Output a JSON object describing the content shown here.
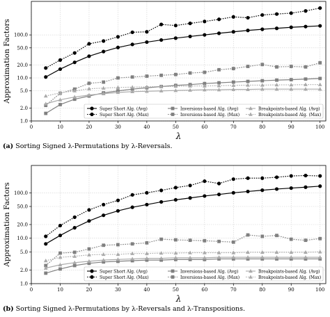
{
  "chart_data": [
    {
      "type": "line",
      "id": "a",
      "caption_label": "(a)",
      "caption_text": "Sorting Signed λ-Permutations by λ-Reversals.",
      "ylabel": "Approximation Factors",
      "xlabel": "λ",
      "yscale": "log",
      "xlim": [
        0,
        102
      ],
      "ylim": [
        1,
        600
      ],
      "xticks": [
        0,
        10,
        20,
        30,
        40,
        50,
        60,
        70,
        80,
        90,
        100
      ],
      "yticks": [
        1.0,
        2.0,
        5.0,
        10.0,
        20.0,
        50.0,
        100.0
      ],
      "ytick_labels": [
        "1.0",
        "2.0",
        "5.0",
        "10.0",
        "20.0",
        "50.0",
        "100.0"
      ],
      "grid": true,
      "legend": "lower-right",
      "x": [
        5,
        10,
        15,
        20,
        25,
        30,
        35,
        40,
        45,
        50,
        55,
        60,
        65,
        70,
        75,
        80,
        85,
        90,
        95,
        100
      ],
      "series": [
        {
          "name": "Super Short Alg. (Avg)",
          "color": "#000000",
          "dash": "solid",
          "marker": "circle",
          "values": [
            10.5,
            16,
            23,
            32,
            41,
            51,
            60,
            68,
            76,
            84,
            92,
            100,
            109,
            118,
            127,
            135,
            142,
            150,
            156,
            162
          ]
        },
        {
          "name": "Super Short Alg. (Max)",
          "color": "#000000",
          "dash": "dotted",
          "marker": "circle",
          "values": [
            17,
            26,
            38,
            62,
            72,
            90,
            115,
            118,
            175,
            165,
            185,
            205,
            230,
            262,
            250,
            290,
            305,
            320,
            360,
            420
          ]
        },
        {
          "name": "Inversions-based Alg. (Avg)",
          "color": "#808080",
          "dash": "solid",
          "marker": "square",
          "values": [
            1.5,
            2.4,
            3.2,
            3.8,
            4.5,
            5.0,
            5.5,
            5.9,
            6.3,
            6.7,
            7.0,
            7.4,
            7.7,
            8.0,
            8.3,
            8.6,
            8.9,
            9.1,
            9.4,
            9.7
          ]
        },
        {
          "name": "Inversions-based Alg. (Max)",
          "color": "#808080",
          "dash": "dotted",
          "marker": "square",
          "values": [
            2.3,
            4.4,
            5.5,
            7.5,
            8.0,
            10.0,
            10.5,
            11.0,
            11.5,
            12.0,
            13.0,
            13.5,
            15.5,
            16.5,
            18.5,
            20.5,
            18.0,
            18.5,
            18.0,
            22.5
          ]
        },
        {
          "name": "Breakpoints-based Alg. (Avg)",
          "color": "#aaaaaa",
          "dash": "solid",
          "marker": "triangle",
          "values": [
            2.5,
            3.1,
            3.6,
            4.0,
            4.3,
            4.6,
            4.8,
            4.9,
            5.0,
            5.1,
            5.2,
            5.3,
            5.3,
            5.4,
            5.4,
            5.5,
            5.5,
            5.5,
            5.5,
            5.5
          ]
        },
        {
          "name": "Breakpoints-based Alg. (Max)",
          "color": "#aaaaaa",
          "dash": "dotted",
          "marker": "triangle",
          "values": [
            3.8,
            4.5,
            5.0,
            5.6,
            5.8,
            6.0,
            6.1,
            6.2,
            6.3,
            6.4,
            6.5,
            6.5,
            6.6,
            6.7,
            6.8,
            6.8,
            6.9,
            6.9,
            7.0,
            7.0
          ]
        }
      ]
    },
    {
      "type": "line",
      "id": "b",
      "caption_label": "(b)",
      "caption_text": "Sorting Signed λ-Permutations by λ-Reversals and λ-Transpositions.",
      "ylabel": "Approximation Factors",
      "xlabel": "λ",
      "yscale": "log",
      "xlim": [
        0,
        102
      ],
      "ylim": [
        1,
        400
      ],
      "xticks": [
        0,
        10,
        20,
        30,
        40,
        50,
        60,
        70,
        80,
        90,
        100
      ],
      "yticks": [
        1.0,
        2.0,
        5.0,
        10.0,
        20.0,
        50.0,
        100.0
      ],
      "ytick_labels": [
        "1.0",
        "2.0",
        "5.0",
        "10.0",
        "20.0",
        "50.0",
        "100.0"
      ],
      "grid": true,
      "legend": "lower-right",
      "x": [
        5,
        10,
        15,
        20,
        25,
        30,
        35,
        40,
        45,
        50,
        55,
        60,
        65,
        70,
        75,
        80,
        85,
        90,
        95,
        100
      ],
      "series": [
        {
          "name": "Super Short Alg. (Avg)",
          "color": "#000000",
          "dash": "solid",
          "marker": "circle",
          "values": [
            7.5,
            11.5,
            17,
            24,
            32,
            40,
            48,
            55,
            63,
            70,
            77,
            85,
            92,
            100,
            107,
            114,
            121,
            127,
            133,
            140
          ]
        },
        {
          "name": "Super Short Alg. (Max)",
          "color": "#000000",
          "dash": "dotted",
          "marker": "circle",
          "values": [
            11,
            19,
            29,
            42,
            55,
            68,
            90,
            100,
            113,
            130,
            145,
            180,
            160,
            200,
            210,
            210,
            220,
            235,
            240,
            235
          ]
        },
        {
          "name": "Inversions-based Alg. (Avg)",
          "color": "#808080",
          "dash": "solid",
          "marker": "square",
          "values": [
            1.7,
            2.1,
            2.5,
            2.8,
            3.0,
            3.1,
            3.2,
            3.3,
            3.3,
            3.4,
            3.4,
            3.4,
            3.5,
            3.5,
            3.5,
            3.5,
            3.5,
            3.5,
            3.5,
            3.5
          ]
        },
        {
          "name": "Inversions-based Alg. (Max)",
          "color": "#808080",
          "dash": "dotted",
          "marker": "square",
          "values": [
            2.5,
            4.7,
            4.9,
            5.8,
            7.0,
            7.2,
            7.5,
            7.9,
            9.5,
            9.2,
            9.0,
            8.8,
            8.5,
            8.2,
            11.8,
            11.0,
            11.5,
            9.5,
            9.0,
            9.8
          ]
        },
        {
          "name": "Breakpoints-based Alg. (Avg)",
          "color": "#aaaaaa",
          "dash": "solid",
          "marker": "triangle",
          "values": [
            2.2,
            2.6,
            2.9,
            3.1,
            3.3,
            3.4,
            3.5,
            3.6,
            3.6,
            3.7,
            3.7,
            3.7,
            3.8,
            3.8,
            3.8,
            3.8,
            3.8,
            3.8,
            3.8,
            3.8
          ]
        },
        {
          "name": "Breakpoints-based Alg. (Max)",
          "color": "#aaaaaa",
          "dash": "dotted",
          "marker": "triangle",
          "values": [
            3.2,
            3.8,
            4.0,
            4.3,
            4.4,
            4.4,
            4.6,
            4.6,
            4.7,
            4.7,
            4.8,
            4.8,
            4.8,
            4.8,
            4.9,
            4.9,
            4.9,
            4.9,
            4.9,
            5.0
          ]
        }
      ]
    }
  ]
}
